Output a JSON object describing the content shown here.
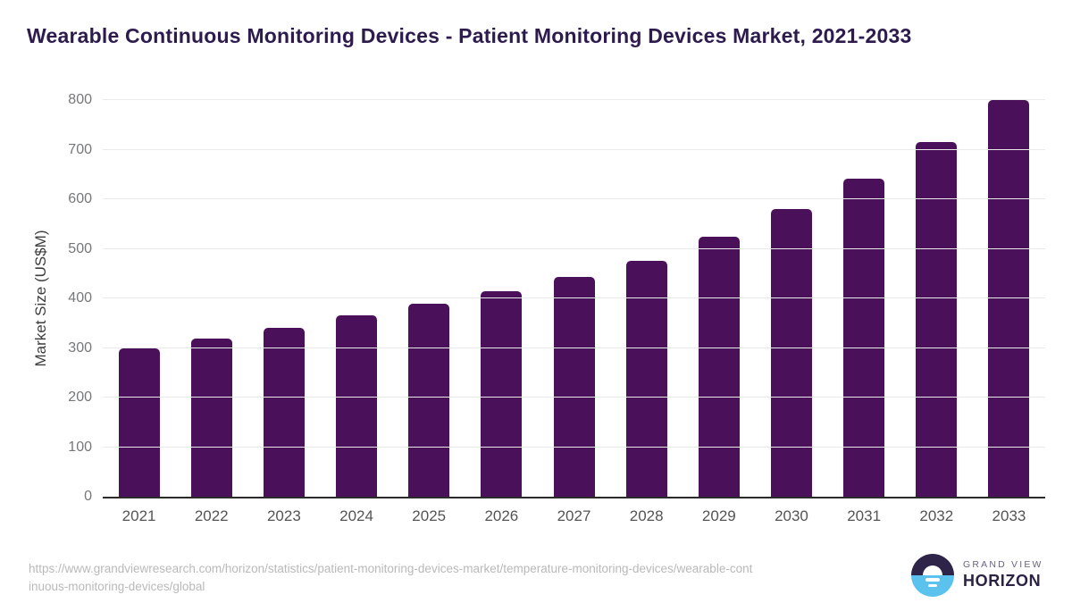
{
  "chart_data": {
    "type": "bar",
    "title": "Wearable Continuous Monitoring Devices - Patient Monitoring Devices Market, 2021-2033",
    "xlabel": "",
    "ylabel": "Market Size (US$M)",
    "categories": [
      "2021",
      "2022",
      "2023",
      "2024",
      "2025",
      "2026",
      "2027",
      "2028",
      "2029",
      "2030",
      "2031",
      "2032",
      "2033"
    ],
    "values": [
      300,
      319,
      341,
      366,
      390,
      414,
      443,
      476,
      525,
      580,
      642,
      715,
      800
    ],
    "ylim": [
      0,
      800
    ],
    "ytick_step": 100,
    "grid": true,
    "legend": "none",
    "bar_color": "#4a1059"
  },
  "colors": {
    "title_text": "#2d1b4e",
    "bar_fill": "#4a1059",
    "gridline": "#e9e9e9",
    "axis_line": "#2b2b2b",
    "logo_dark": "#2e2348",
    "logo_blue": "#5bc2ee"
  },
  "footer": {
    "source_url": "https://www.grandviewresearch.com/horizon/statistics/patient-monitoring-devices-market/temperature-monitoring-devices/wearable-continuous-monitoring-devices/global",
    "logo_top": "GRAND VIEW",
    "logo_bottom": "HORIZON"
  }
}
